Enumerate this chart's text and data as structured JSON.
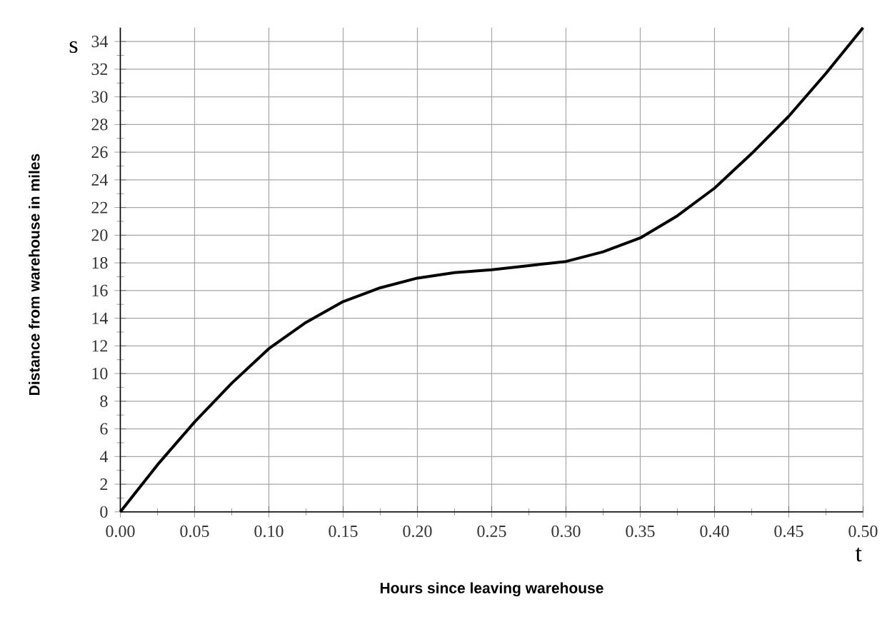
{
  "chart_data": {
    "type": "line",
    "xlabel": "Hours since leaving warehouse",
    "ylabel": "Distance from warehouse in miles",
    "annotations": [
      "s",
      "t"
    ],
    "xlim": [
      0,
      0.5
    ],
    "ylim": [
      0,
      35
    ],
    "xticks": [
      {
        "value": 0,
        "label": "0.00"
      },
      {
        "value": 0.05,
        "label": "0.05"
      },
      {
        "value": 0.1,
        "label": "0.10"
      },
      {
        "value": 0.15,
        "label": "0.15"
      },
      {
        "value": 0.2,
        "label": "0.20"
      },
      {
        "value": 0.25,
        "label": "0.25"
      },
      {
        "value": 0.3,
        "label": "0.30"
      },
      {
        "value": 0.35,
        "label": "0.35"
      },
      {
        "value": 0.4,
        "label": "0.40"
      },
      {
        "value": 0.45,
        "label": "0.45"
      },
      {
        "value": 0.5,
        "label": "0.50"
      }
    ],
    "yticks": [
      0,
      2,
      4,
      6,
      8,
      10,
      12,
      14,
      16,
      18,
      20,
      22,
      24,
      26,
      28,
      30,
      32,
      34
    ],
    "grid": true,
    "marker": "none",
    "line_style": "solid",
    "x": [
      0,
      0.025,
      0.05,
      0.075,
      0.1,
      0.125,
      0.15,
      0.175,
      0.2,
      0.225,
      0.25,
      0.275,
      0.3,
      0.325,
      0.35,
      0.375,
      0.4,
      0.425,
      0.45,
      0.475,
      0.5
    ],
    "series": [
      {
        "color": "#000000",
        "values": [
          0,
          3.4,
          6.5,
          9.3,
          11.8,
          13.7,
          15.2,
          16.2,
          16.9,
          17.3,
          17.5,
          17.8,
          18.1,
          18.8,
          19.8,
          21.4,
          23.4,
          25.9,
          28.6,
          31.7,
          35
        ]
      }
    ]
  }
}
